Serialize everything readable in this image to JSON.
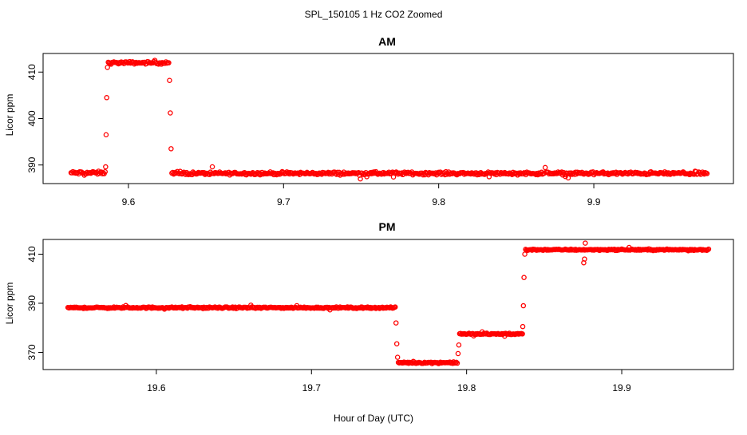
{
  "figure": {
    "title": "SPL_150105  1 Hz CO2 Zoomed",
    "xlabel": "Hour of Day (UTC)"
  },
  "chart_data": [
    {
      "type": "scatter",
      "title": "AM",
      "ylabel": "Licor ppm",
      "xlim": [
        9.545,
        9.99
      ],
      "ylim": [
        386,
        414
      ],
      "xticks": [
        9.6,
        9.7,
        9.8,
        9.9
      ],
      "yticks": [
        390,
        400,
        410
      ],
      "marker_color": "#ff0000",
      "segments": [
        {
          "x_start": 9.563,
          "x_end": 9.585,
          "y": 388.3,
          "jitter": 1.0
        },
        {
          "x_start": 9.5853,
          "x_end": 9.5853,
          "y": 389.6,
          "jitter": 0
        },
        {
          "x_start": 9.5856,
          "x_end": 9.5856,
          "y": 396.5,
          "jitter": 0
        },
        {
          "x_start": 9.586,
          "x_end": 9.586,
          "y": 404.5,
          "jitter": 0
        },
        {
          "x_start": 9.5865,
          "x_end": 9.5865,
          "y": 411.0,
          "jitter": 0
        },
        {
          "x_start": 9.587,
          "x_end": 9.626,
          "y": 412.0,
          "jitter": 0.8
        },
        {
          "x_start": 9.6265,
          "x_end": 9.6265,
          "y": 408.2,
          "jitter": 0
        },
        {
          "x_start": 9.627,
          "x_end": 9.627,
          "y": 401.2,
          "jitter": 0
        },
        {
          "x_start": 9.6275,
          "x_end": 9.6275,
          "y": 393.5,
          "jitter": 0
        },
        {
          "x_start": 9.628,
          "x_end": 9.973,
          "y": 388.2,
          "jitter": 0.9
        }
      ]
    },
    {
      "type": "scatter",
      "title": "PM",
      "ylabel": "Licor ppm",
      "xlim": [
        19.527,
        19.972
      ],
      "ylim": [
        363,
        416
      ],
      "xticks": [
        19.6,
        19.7,
        19.8,
        19.9
      ],
      "yticks": [
        370,
        390,
        410
      ],
      "marker_color": "#ff0000",
      "segments": [
        {
          "x_start": 19.543,
          "x_end": 19.754,
          "y": 388.2,
          "jitter": 0.9
        },
        {
          "x_start": 19.7545,
          "x_end": 19.7545,
          "y": 382.0,
          "jitter": 0
        },
        {
          "x_start": 19.755,
          "x_end": 19.755,
          "y": 373.5,
          "jitter": 0
        },
        {
          "x_start": 19.7555,
          "x_end": 19.7555,
          "y": 368.0,
          "jitter": 0
        },
        {
          "x_start": 19.756,
          "x_end": 19.794,
          "y": 365.8,
          "jitter": 0.9
        },
        {
          "x_start": 19.7945,
          "x_end": 19.7945,
          "y": 369.5,
          "jitter": 0
        },
        {
          "x_start": 19.795,
          "x_end": 19.795,
          "y": 373.0,
          "jitter": 0
        },
        {
          "x_start": 19.7955,
          "x_end": 19.836,
          "y": 377.5,
          "jitter": 0.9
        },
        {
          "x_start": 19.8362,
          "x_end": 19.8362,
          "y": 380.5,
          "jitter": 0
        },
        {
          "x_start": 19.8366,
          "x_end": 19.8366,
          "y": 389.0,
          "jitter": 0
        },
        {
          "x_start": 19.837,
          "x_end": 19.837,
          "y": 400.5,
          "jitter": 0
        },
        {
          "x_start": 19.8375,
          "x_end": 19.8375,
          "y": 410.0,
          "jitter": 0
        },
        {
          "x_start": 19.838,
          "x_end": 19.956,
          "y": 411.8,
          "jitter": 0.8
        },
        {
          "x_start": 19.8755,
          "x_end": 19.8755,
          "y": 406.5,
          "jitter": 0
        },
        {
          "x_start": 19.876,
          "x_end": 19.876,
          "y": 408.0,
          "jitter": 0
        },
        {
          "x_start": 19.8765,
          "x_end": 19.8765,
          "y": 414.5,
          "jitter": 0
        }
      ]
    }
  ]
}
